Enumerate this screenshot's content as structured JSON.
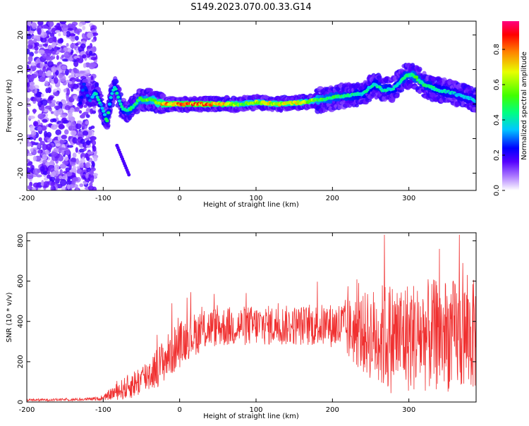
{
  "title": "S149.2023.070.00.33.G14",
  "chart_data": [
    {
      "type": "heatmap",
      "xlabel": "Height of straight line (km)",
      "ylabel": "Frequency (Hz)",
      "xlim": [
        -200,
        388
      ],
      "ylim": [
        -25,
        24
      ],
      "xticks": [
        "-200",
        "-100",
        "0",
        "100",
        "200",
        "300"
      ],
      "xtick_values": [
        -200,
        -100,
        0,
        100,
        200,
        300
      ],
      "yticks": [
        "-20",
        "-10",
        "0",
        "10",
        "20"
      ],
      "ytick_values": [
        -20,
        -10,
        0,
        10,
        20
      ],
      "colorbar": {
        "label": "Normalized spectral amplitude",
        "ticks": [
          "0.0",
          "0.2",
          "0.4",
          "0.6",
          "0.8"
        ],
        "tick_values": [
          0.0,
          0.2,
          0.4,
          0.6,
          0.8
        ],
        "range": [
          0,
          0.96
        ]
      },
      "ridge": [
        {
          "x": -130,
          "y": 0.5,
          "a": 0.25
        },
        {
          "x": -125,
          "y": 6,
          "a": 0.35
        },
        {
          "x": -118,
          "y": 1,
          "a": 0.3
        },
        {
          "x": -110,
          "y": 3.5,
          "a": 0.45
        },
        {
          "x": -100,
          "y": -2,
          "a": 0.4
        },
        {
          "x": -95,
          "y": -5,
          "a": 0.5
        },
        {
          "x": -90,
          "y": 2,
          "a": 0.45
        },
        {
          "x": -85,
          "y": 5,
          "a": 0.4
        },
        {
          "x": -80,
          "y": 2,
          "a": 0.5
        },
        {
          "x": -75,
          "y": -1.5,
          "a": 0.45
        },
        {
          "x": -68,
          "y": -2,
          "a": 0.5
        },
        {
          "x": -60,
          "y": -0.5,
          "a": 0.5
        },
        {
          "x": -52,
          "y": 1.5,
          "a": 0.55
        },
        {
          "x": -45,
          "y": 1,
          "a": 0.6
        },
        {
          "x": -38,
          "y": 1.5,
          "a": 0.6
        },
        {
          "x": -30,
          "y": 0.5,
          "a": 0.7
        },
        {
          "x": -20,
          "y": 0,
          "a": 0.85
        },
        {
          "x": 0,
          "y": 0,
          "a": 0.9
        },
        {
          "x": 30,
          "y": 0,
          "a": 0.9
        },
        {
          "x": 60,
          "y": 0,
          "a": 0.85
        },
        {
          "x": 80,
          "y": 0,
          "a": 0.6
        },
        {
          "x": 100,
          "y": 0.5,
          "a": 0.7
        },
        {
          "x": 130,
          "y": 0,
          "a": 0.75
        },
        {
          "x": 160,
          "y": 0.5,
          "a": 0.75
        },
        {
          "x": 190,
          "y": 1.5,
          "a": 0.55
        },
        {
          "x": 220,
          "y": 2.5,
          "a": 0.5
        },
        {
          "x": 240,
          "y": 3,
          "a": 0.45
        },
        {
          "x": 255,
          "y": 6,
          "a": 0.45
        },
        {
          "x": 265,
          "y": 4,
          "a": 0.5
        },
        {
          "x": 280,
          "y": 4.5,
          "a": 0.45
        },
        {
          "x": 295,
          "y": 8,
          "a": 0.5
        },
        {
          "x": 305,
          "y": 8.5,
          "a": 0.55
        },
        {
          "x": 320,
          "y": 5.5,
          "a": 0.5
        },
        {
          "x": 340,
          "y": 4,
          "a": 0.45
        },
        {
          "x": 360,
          "y": 3,
          "a": 0.4
        },
        {
          "x": 388,
          "y": 1,
          "a": 0.4
        }
      ]
    },
    {
      "type": "line",
      "xlabel": "Height of straight line (km)",
      "ylabel": "SNR (10 * v/v)",
      "xlim": [
        -200,
        388
      ],
      "ylim": [
        0,
        840
      ],
      "xticks": [
        "-200",
        "-100",
        "0",
        "100",
        "200",
        "300"
      ],
      "xtick_values": [
        -200,
        -100,
        0,
        100,
        200,
        300
      ],
      "yticks": [
        "0",
        "200",
        "400",
        "600",
        "800"
      ],
      "ytick_values": [
        0,
        200,
        400,
        600,
        800
      ],
      "line_color": "#f03030",
      "envelope": [
        {
          "x": -200,
          "mean": 10,
          "spread": 6
        },
        {
          "x": -130,
          "mean": 12,
          "spread": 6
        },
        {
          "x": -100,
          "mean": 18,
          "spread": 10
        },
        {
          "x": -90,
          "mean": 40,
          "spread": 30
        },
        {
          "x": -70,
          "mean": 70,
          "spread": 60
        },
        {
          "x": -50,
          "mean": 110,
          "spread": 80
        },
        {
          "x": -30,
          "mean": 170,
          "spread": 100
        },
        {
          "x": -10,
          "mean": 250,
          "spread": 120
        },
        {
          "x": 10,
          "mean": 320,
          "spread": 110
        },
        {
          "x": 40,
          "mean": 370,
          "spread": 100
        },
        {
          "x": 100,
          "mean": 380,
          "spread": 100
        },
        {
          "x": 160,
          "mean": 380,
          "spread": 100
        },
        {
          "x": 200,
          "mean": 380,
          "spread": 110
        },
        {
          "x": 240,
          "mean": 340,
          "spread": 200
        },
        {
          "x": 270,
          "mean": 320,
          "spread": 280
        },
        {
          "x": 320,
          "mean": 330,
          "spread": 280
        },
        {
          "x": 388,
          "mean": 330,
          "spread": 280
        }
      ],
      "peaks": [
        {
          "x": -10,
          "y": 490
        },
        {
          "x": 268,
          "y": 830
        },
        {
          "x": 340,
          "y": 760
        },
        {
          "x": 366,
          "y": 830
        }
      ]
    }
  ]
}
